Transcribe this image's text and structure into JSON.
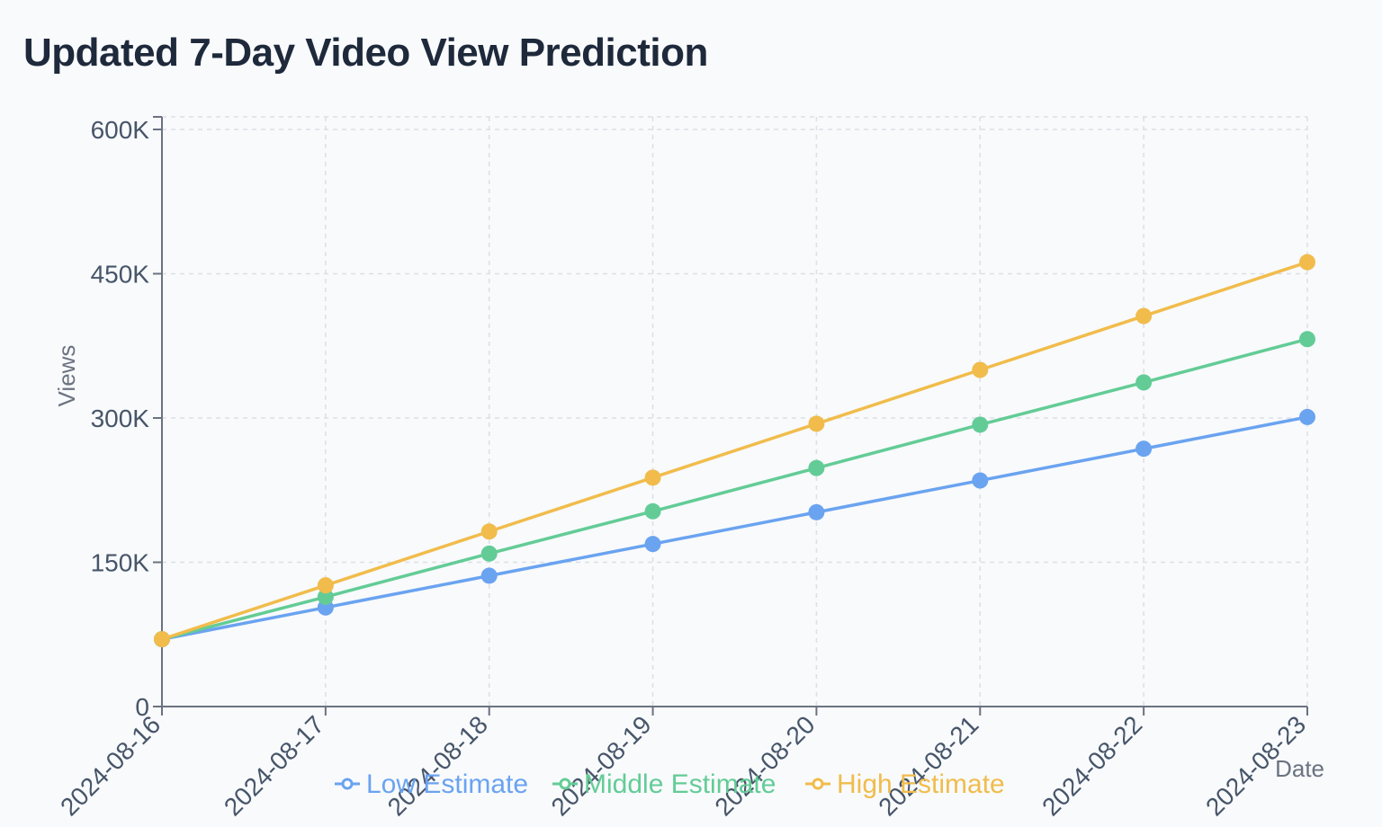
{
  "chart_data": {
    "type": "line",
    "title": "Updated 7-Day Video View Prediction",
    "xlabel": "Date",
    "ylabel": "Views",
    "x": [
      "2024-08-16",
      "2024-08-17",
      "2024-08-18",
      "2024-08-19",
      "2024-08-20",
      "2024-08-21",
      "2024-08-22",
      "2024-08-23"
    ],
    "ylim": [
      0,
      600000
    ],
    "yticks": [
      {
        "value": 0,
        "label": "0"
      },
      {
        "value": 150000,
        "label": "150K"
      },
      {
        "value": 300000,
        "label": "300K"
      },
      {
        "value": 450000,
        "label": "450K"
      },
      {
        "value": 600000,
        "label": "600K"
      }
    ],
    "grid": true,
    "legend_position": "bottom",
    "series": [
      {
        "name": "Low Estimate",
        "color": "#6aa3f0",
        "values": [
          70000,
          103000,
          136000,
          169000,
          202000,
          235000,
          268000,
          301000
        ]
      },
      {
        "name": "Middle Estimate",
        "color": "#63cc96",
        "values": [
          70000,
          114000,
          159000,
          203000,
          248000,
          293000,
          337000,
          382000
        ]
      },
      {
        "name": "High Estimate",
        "color": "#f1bc4b",
        "values": [
          70000,
          126000,
          182000,
          238000,
          294000,
          350000,
          406000,
          462000
        ]
      }
    ]
  }
}
